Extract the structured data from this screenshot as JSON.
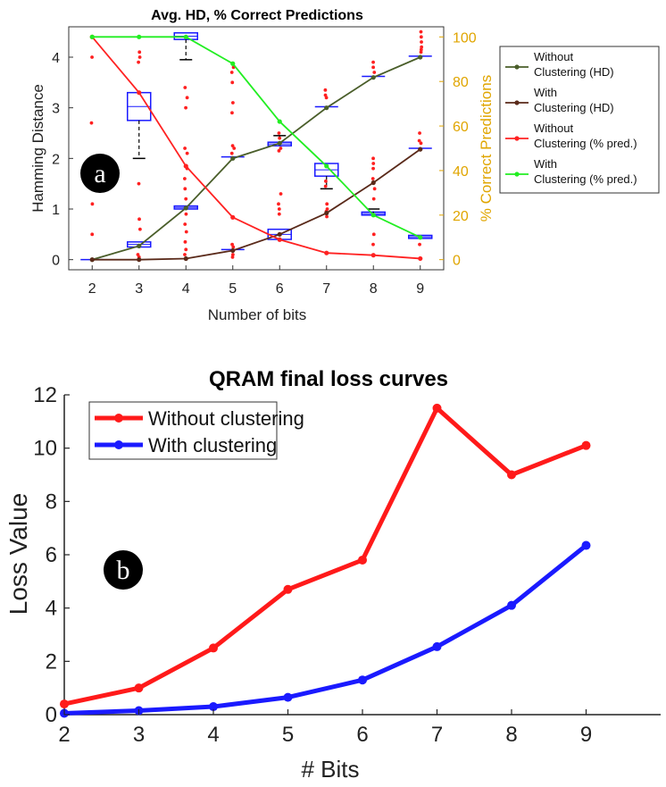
{
  "colors": {
    "dark_green": "#4a5e2a",
    "dark_brown": "#5a2a1a",
    "red": "#ff2222",
    "bright_green": "#22ee22",
    "orange_axis": "#e0a500",
    "box_blue": "#1a1aff",
    "loss_red": "#ff1a1a",
    "loss_blue": "#1a1aff"
  },
  "chart_data": [
    {
      "type": "line",
      "title": "Avg. HD, % Correct Predictions",
      "xlabel": "Number of bits",
      "ylabel": "Hamming Distance",
      "ylabel_right": "% Correct Predictions",
      "x": [
        2,
        3,
        4,
        5,
        6,
        7,
        8,
        9
      ],
      "xticks": [
        "2",
        "3",
        "4",
        "5",
        "6",
        "7",
        "8",
        "9"
      ],
      "yticks": [
        "0",
        "1",
        "2",
        "3",
        "4"
      ],
      "yticks_right": [
        "0",
        "20",
        "40",
        "60",
        "80",
        "100"
      ],
      "ylim": [
        0,
        4.4
      ],
      "ylim_right": [
        0,
        100
      ],
      "badge": "a",
      "series": [
        {
          "name": "Without Clustering (HD)",
          "legend": [
            "Without",
            "Clustering (HD)"
          ],
          "axis": "left",
          "color": "#4a5e2a",
          "values": [
            0,
            0.27,
            1.02,
            2.0,
            2.3,
            3.0,
            3.6,
            4.0
          ]
        },
        {
          "name": "With Clustering (HD)",
          "legend": [
            "With",
            "Clustering (HD)"
          ],
          "axis": "left",
          "color": "#5a2a1a",
          "values": [
            0,
            0,
            0.02,
            0.18,
            0.5,
            0.92,
            1.52,
            2.18
          ]
        },
        {
          "name": "Without Clustering (% pred.)",
          "legend": [
            "Without",
            "Clustering (% pred.)"
          ],
          "axis": "right",
          "color": "#ff2222",
          "values": [
            100,
            75,
            42,
            19,
            9,
            3,
            2,
            0.5
          ]
        },
        {
          "name": "With Clustering (% pred.)",
          "legend": [
            "With",
            "Clustering (% pred.)"
          ],
          "axis": "right",
          "color": "#22ee22",
          "values": [
            100,
            100,
            100,
            88,
            62,
            42,
            20,
            10
          ]
        }
      ],
      "boxes": [
        {
          "x": 2,
          "low": 0,
          "high": 0
        },
        {
          "x": 3,
          "low": 2.75,
          "high": 3.3
        },
        {
          "x": 4,
          "low": 4.35,
          "high": 4.48
        },
        {
          "x": 5,
          "low": 1.98,
          "high": 2.03
        },
        {
          "x": 6,
          "low": 2.25,
          "high": 2.32
        },
        {
          "x": 7,
          "low": 2.98,
          "high": 3.02
        },
        {
          "x": 8,
          "low": 3.58,
          "high": 3.62
        },
        {
          "x": 9,
          "low": 3.98,
          "high": 4.02
        },
        {
          "x": 3,
          "low": 0.25,
          "high": 0.35
        },
        {
          "x": 4,
          "low": 1.0,
          "high": 1.06
        },
        {
          "x": 5,
          "low": 0.2,
          "high": 0.2
        },
        {
          "x": 6,
          "low": 0.4,
          "high": 0.6
        },
        {
          "x": 7,
          "low": 1.65,
          "high": 1.9
        },
        {
          "x": 8,
          "low": 0.88,
          "high": 0.94
        },
        {
          "x": 9,
          "low": 2.16,
          "high": 2.2
        },
        {
          "x": 9,
          "low": 0.42,
          "high": 0.48
        }
      ]
    },
    {
      "type": "line",
      "title": "QRAM final loss curves",
      "xlabel": "# Bits",
      "ylabel": "Loss Value",
      "x": [
        2,
        3,
        4,
        5,
        6,
        7,
        8,
        9
      ],
      "xticks": [
        "2",
        "3",
        "4",
        "5",
        "6",
        "7",
        "8",
        "9"
      ],
      "yticks": [
        "0",
        "2",
        "4",
        "6",
        "8",
        "10",
        "12"
      ],
      "xlim": [
        2,
        10
      ],
      "ylim": [
        0,
        12
      ],
      "badge": "b",
      "series": [
        {
          "name": "Without clustering",
          "color": "#ff1a1a",
          "values": [
            0.4,
            1.0,
            2.5,
            4.7,
            5.8,
            11.5,
            9.0,
            10.1
          ]
        },
        {
          "name": "With clustering",
          "color": "#1a1aff",
          "values": [
            0.05,
            0.15,
            0.3,
            0.65,
            1.3,
            2.55,
            4.1,
            6.35
          ]
        }
      ]
    }
  ]
}
